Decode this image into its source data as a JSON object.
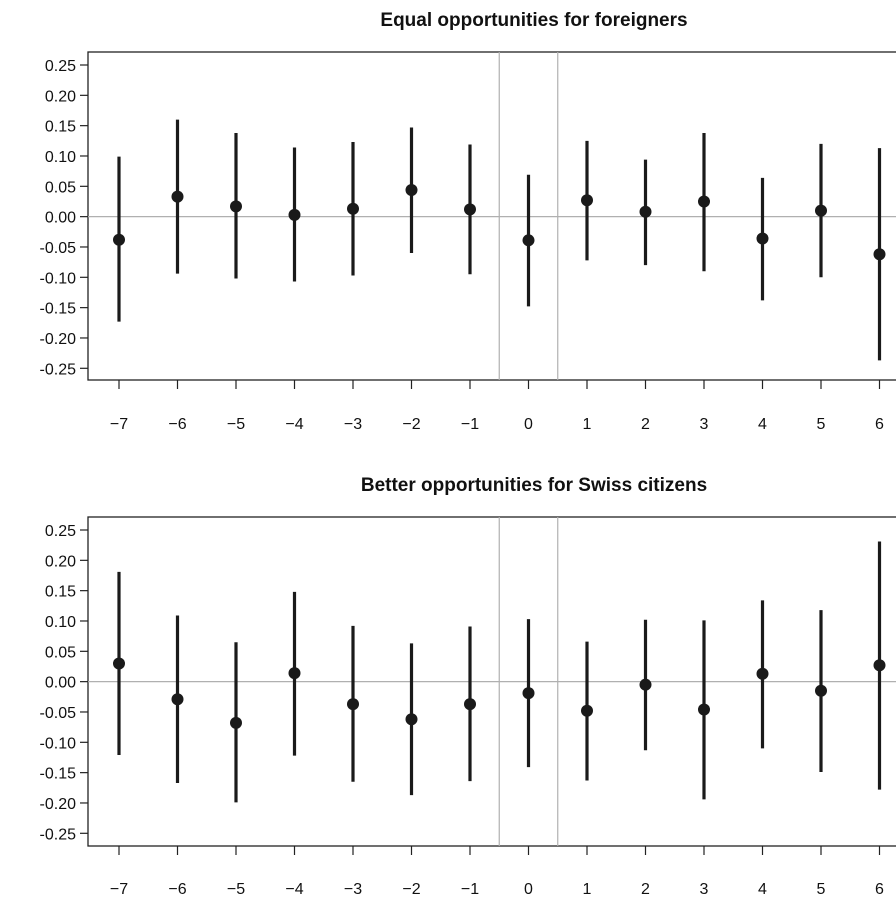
{
  "chart_data": [
    {
      "type": "scatter",
      "title": "Equal opportunities for foreigners",
      "xlabel": "",
      "ylabel": "",
      "x": [
        -7,
        -6,
        -5,
        -4,
        -3,
        -2,
        -1,
        0,
        1,
        2,
        3,
        4,
        5,
        6
      ],
      "x_ticks": [
        "−7",
        "−6",
        "−5",
        "−4",
        "−3",
        "−2",
        "−1",
        "0",
        "1",
        "2",
        "3",
        "4",
        "5",
        "6"
      ],
      "y_ticks": [
        "0.25",
        "0.20",
        "0.15",
        "0.10",
        "0.05",
        "0.00",
        "-0.05",
        "-0.10",
        "-0.15",
        "-0.20",
        "-0.25"
      ],
      "y_tick_values": [
        0.25,
        0.2,
        0.15,
        0.1,
        0.05,
        0.0,
        -0.05,
        -0.1,
        -0.15,
        -0.2,
        -0.25
      ],
      "ylim": [
        -0.27,
        0.27
      ],
      "xlim": [
        -7.5,
        6
      ],
      "estimate": [
        -0.038,
        0.033,
        0.017,
        0.003,
        0.013,
        0.044,
        0.012,
        -0.039,
        0.027,
        0.008,
        0.025,
        -0.036,
        0.01,
        -0.062
      ],
      "ci_lower": [
        -0.173,
        -0.094,
        -0.102,
        -0.107,
        -0.097,
        -0.06,
        -0.095,
        -0.148,
        -0.072,
        -0.08,
        -0.09,
        -0.138,
        -0.1,
        -0.237
      ],
      "ci_upper": [
        0.099,
        0.16,
        0.138,
        0.114,
        0.123,
        0.147,
        0.119,
        0.069,
        0.125,
        0.094,
        0.138,
        0.064,
        0.12,
        0.113
      ],
      "reference_line_y": 0,
      "reference_band_x": [
        -0.5,
        0.5
      ],
      "grid": false
    },
    {
      "type": "scatter",
      "title": "Better opportunities for Swiss citizens",
      "xlabel": "",
      "ylabel": "",
      "x": [
        -7,
        -6,
        -5,
        -4,
        -3,
        -2,
        -1,
        0,
        1,
        2,
        3,
        4,
        5,
        6
      ],
      "x_ticks": [
        "−7",
        "−6",
        "−5",
        "−4",
        "−3",
        "−2",
        "−1",
        "0",
        "1",
        "2",
        "3",
        "4",
        "5",
        "6"
      ],
      "y_ticks": [
        "0.25",
        "0.20",
        "0.15",
        "0.10",
        "0.05",
        "0.00",
        "-0.05",
        "-0.10",
        "-0.15",
        "-0.20",
        "-0.25"
      ],
      "y_tick_values": [
        0.25,
        0.2,
        0.15,
        0.1,
        0.05,
        0.0,
        -0.05,
        -0.1,
        -0.15,
        -0.2,
        -0.25
      ],
      "ylim": [
        -0.27,
        0.27
      ],
      "xlim": [
        -7.5,
        6
      ],
      "estimate": [
        0.03,
        -0.029,
        -0.068,
        0.014,
        -0.037,
        -0.062,
        -0.037,
        -0.019,
        -0.048,
        -0.005,
        -0.046,
        0.013,
        -0.015,
        0.027
      ],
      "ci_lower": [
        -0.121,
        -0.167,
        -0.199,
        -0.122,
        -0.165,
        -0.187,
        -0.164,
        -0.141,
        -0.163,
        -0.113,
        -0.194,
        -0.11,
        -0.149,
        -0.178
      ],
      "ci_upper": [
        0.181,
        0.109,
        0.065,
        0.148,
        0.092,
        0.063,
        0.091,
        0.103,
        0.066,
        0.102,
        0.101,
        0.134,
        0.118,
        0.231
      ],
      "reference_line_y": 0,
      "reference_band_x": [
        -0.5,
        0.5
      ],
      "grid": false
    }
  ]
}
